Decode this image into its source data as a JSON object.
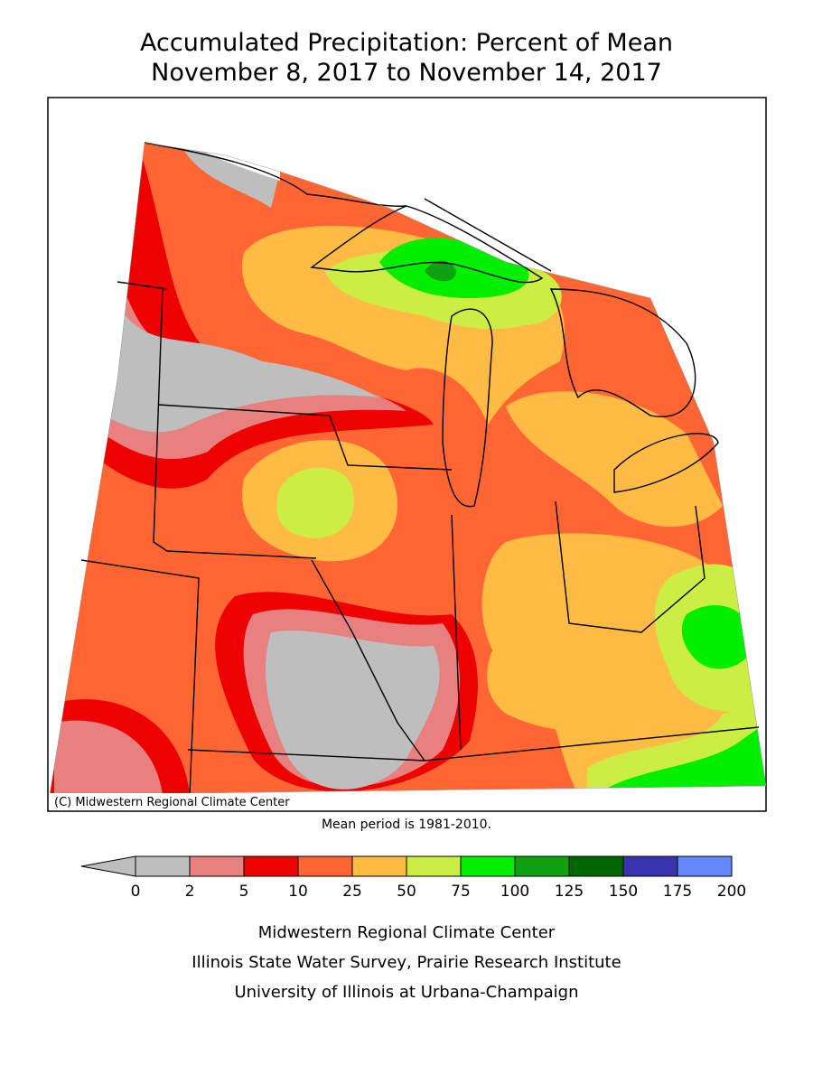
{
  "title": [
    "Accumulated Precipitation: Percent of Mean",
    "November 8, 2017 to November 14, 2017"
  ],
  "map": {
    "credit": "(C) Midwestern Regional Climate Center"
  },
  "note": "Mean period is 1981-2010.",
  "legend": {
    "ticks": [
      0,
      2,
      5,
      10,
      25,
      50,
      75,
      100,
      125,
      150,
      175,
      200
    ],
    "under_color": "#bebebe",
    "colors": [
      "#bebebe",
      "#e88080",
      "#ee0000",
      "#ff6633",
      "#ffbb44",
      "#ccee44",
      "#00ee00",
      "#11a011",
      "#006600",
      "#3a33b0",
      "#6688ff"
    ]
  },
  "footer": [
    "Midwestern Regional Climate Center",
    "Illinois State Water Survey, Prairie Research Institute",
    "University of Illinois at Urbana-Champaign"
  ]
}
